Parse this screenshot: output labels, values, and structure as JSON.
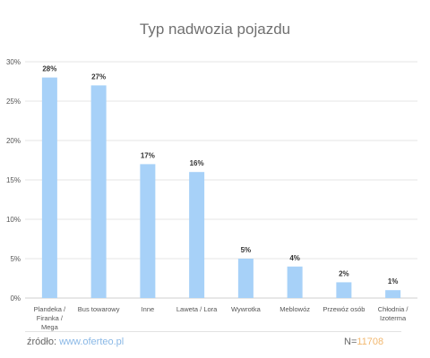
{
  "chart_data": {
    "type": "bar",
    "title": "Typ nadwozia pojazdu",
    "categories": [
      [
        "Plandeka /",
        "Firanka /",
        "Mega"
      ],
      [
        "Bus towarowy"
      ],
      [
        "Inne"
      ],
      [
        "Laweta / Lora"
      ],
      [
        "Wywrotka"
      ],
      [
        "Meblowóz"
      ],
      [
        "Przewóz osób"
      ],
      [
        "Chłodnia /",
        "Izoterma"
      ]
    ],
    "values": [
      28,
      27,
      17,
      16,
      5,
      4,
      2,
      1
    ],
    "value_labels": [
      "28%",
      "27%",
      "17%",
      "16%",
      "5%",
      "4%",
      "2%",
      "1%"
    ],
    "yticks": [
      0,
      5,
      10,
      15,
      20,
      25,
      30
    ],
    "ytick_labels": [
      "0%",
      "5%",
      "10%",
      "15%",
      "20%",
      "25%",
      "30%"
    ],
    "ylim": [
      0,
      30
    ],
    "grid": true,
    "bar_color": "#a7d1f8"
  },
  "footer": {
    "source_label": "źródło:",
    "source_link": "www.oferteo.pl",
    "n_label": "N=",
    "n_value": "11708"
  }
}
